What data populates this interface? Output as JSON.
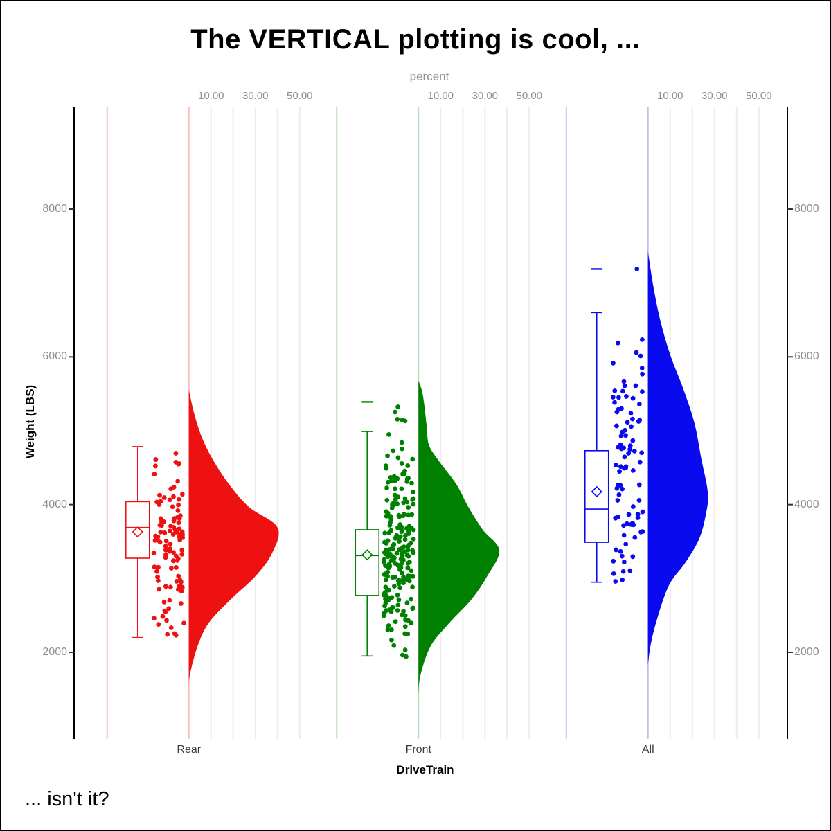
{
  "title": "The VERTICAL plotting is cool, ...",
  "caption": "... isn't it?",
  "axes": {
    "top": {
      "label": "percent",
      "ticks": [
        {
          "v": 10,
          "label": "10.00"
        },
        {
          "v": 30,
          "label": "30.00"
        },
        {
          "v": 50,
          "label": "50.00"
        }
      ],
      "gridline_values": [
        10,
        20,
        30,
        40,
        50
      ]
    },
    "left": {
      "label": "Weight (LBS)",
      "ticks": [
        {
          "v": 8000,
          "label": "8000"
        },
        {
          "v": 6000,
          "label": "6000"
        },
        {
          "v": 4000,
          "label": "4000"
        },
        {
          "v": 2000,
          "label": "2000"
        }
      ]
    },
    "right": {
      "ticks": [
        {
          "v": 8000,
          "label": "8000"
        },
        {
          "v": 6000,
          "label": "6000"
        },
        {
          "v": 4000,
          "label": "4000"
        },
        {
          "v": 2000,
          "label": "2000"
        }
      ]
    },
    "bottom": {
      "label": "DriveTrain"
    }
  },
  "style": {
    "axis_color": "#000000",
    "grid_color": "#ececec",
    "tick_text_color": "#8e8e8e",
    "category_text_color": "#3c3c3c",
    "box_fill": "#ffffff"
  },
  "chart_data": {
    "type": "raincloud",
    "orientation": "vertical: box plot + jittered points + right-side half violin per category",
    "value_axis_label": "Weight (LBS)",
    "value_ticks": [
      2000,
      4000,
      6000,
      8000
    ],
    "ylim": [
      830,
      9390
    ],
    "percent_axis": {
      "label": "percent",
      "gridlines": [
        10,
        20,
        30,
        40,
        50
      ],
      "labeled": [
        10,
        30,
        50
      ]
    },
    "x_categories": [
      "Rear",
      "Front",
      "All"
    ],
    "groups": [
      {
        "name": "Rear",
        "color": "#ee1111",
        "pale_color": "#f7bebe",
        "n_points": 105,
        "box": {
          "whisker_low": 2200,
          "q1": 3275,
          "median": 3690,
          "mean": 3630,
          "q3": 4040,
          "whisker_high": 4785
        },
        "outliers": [],
        "point_range": [
          2180,
          4780
        ],
        "density_weight_percent": [
          [
            1580,
            0
          ],
          [
            1720,
            0.6
          ],
          [
            2090,
            4
          ],
          [
            2400,
            9
          ],
          [
            2720,
            19
          ],
          [
            3030,
            30
          ],
          [
            3340,
            37.5
          ],
          [
            3690,
            40
          ],
          [
            3970,
            27
          ],
          [
            4280,
            18
          ],
          [
            4600,
            11
          ],
          [
            4900,
            6
          ],
          [
            5220,
            2.5
          ],
          [
            5550,
            0
          ]
        ]
      },
      {
        "name": "Front",
        "color": "#008000",
        "pale_color": "#bcdabc",
        "n_points": 215,
        "box": {
          "whisker_low": 1950,
          "q1": 2770,
          "median": 3310,
          "mean": 3320,
          "q3": 3660,
          "whisker_high": 4990
        },
        "outliers": [
          5390
        ],
        "point_range": [
          1860,
          5390
        ],
        "density_weight_percent": [
          [
            1440,
            0
          ],
          [
            1700,
            1
          ],
          [
            2090,
            5.6
          ],
          [
            2400,
            14
          ],
          [
            2720,
            24
          ],
          [
            3030,
            31
          ],
          [
            3380,
            36.5
          ],
          [
            3660,
            29
          ],
          [
            3970,
            22.5
          ],
          [
            4280,
            17
          ],
          [
            4600,
            9
          ],
          [
            4810,
            4.7
          ],
          [
            5070,
            3.7
          ],
          [
            5380,
            2.5
          ],
          [
            5550,
            1.5
          ],
          [
            5680,
            0
          ]
        ]
      },
      {
        "name": "All",
        "color": "#0a0af0",
        "pale_color": "#c0c0f0",
        "n_points": 88,
        "box": {
          "whisker_low": 2950,
          "q1": 3490,
          "median": 3940,
          "mean": 4175,
          "q3": 4730,
          "whisker_high": 6600
        },
        "outliers": [
          7190
        ],
        "point_range": [
          2900,
          6450
        ],
        "extra_points": [
          7190
        ],
        "density_weight_percent": [
          [
            1830,
            0
          ],
          [
            2100,
            1.2
          ],
          [
            2440,
            4
          ],
          [
            2910,
            9.5
          ],
          [
            3220,
            17
          ],
          [
            3530,
            23
          ],
          [
            3850,
            26
          ],
          [
            4160,
            27
          ],
          [
            4630,
            24
          ],
          [
            5100,
            21
          ],
          [
            5560,
            16
          ],
          [
            6030,
            10
          ],
          [
            6500,
            5.5
          ],
          [
            6940,
            2.5
          ],
          [
            7300,
            0.6
          ],
          [
            7430,
            0
          ]
        ]
      }
    ]
  }
}
